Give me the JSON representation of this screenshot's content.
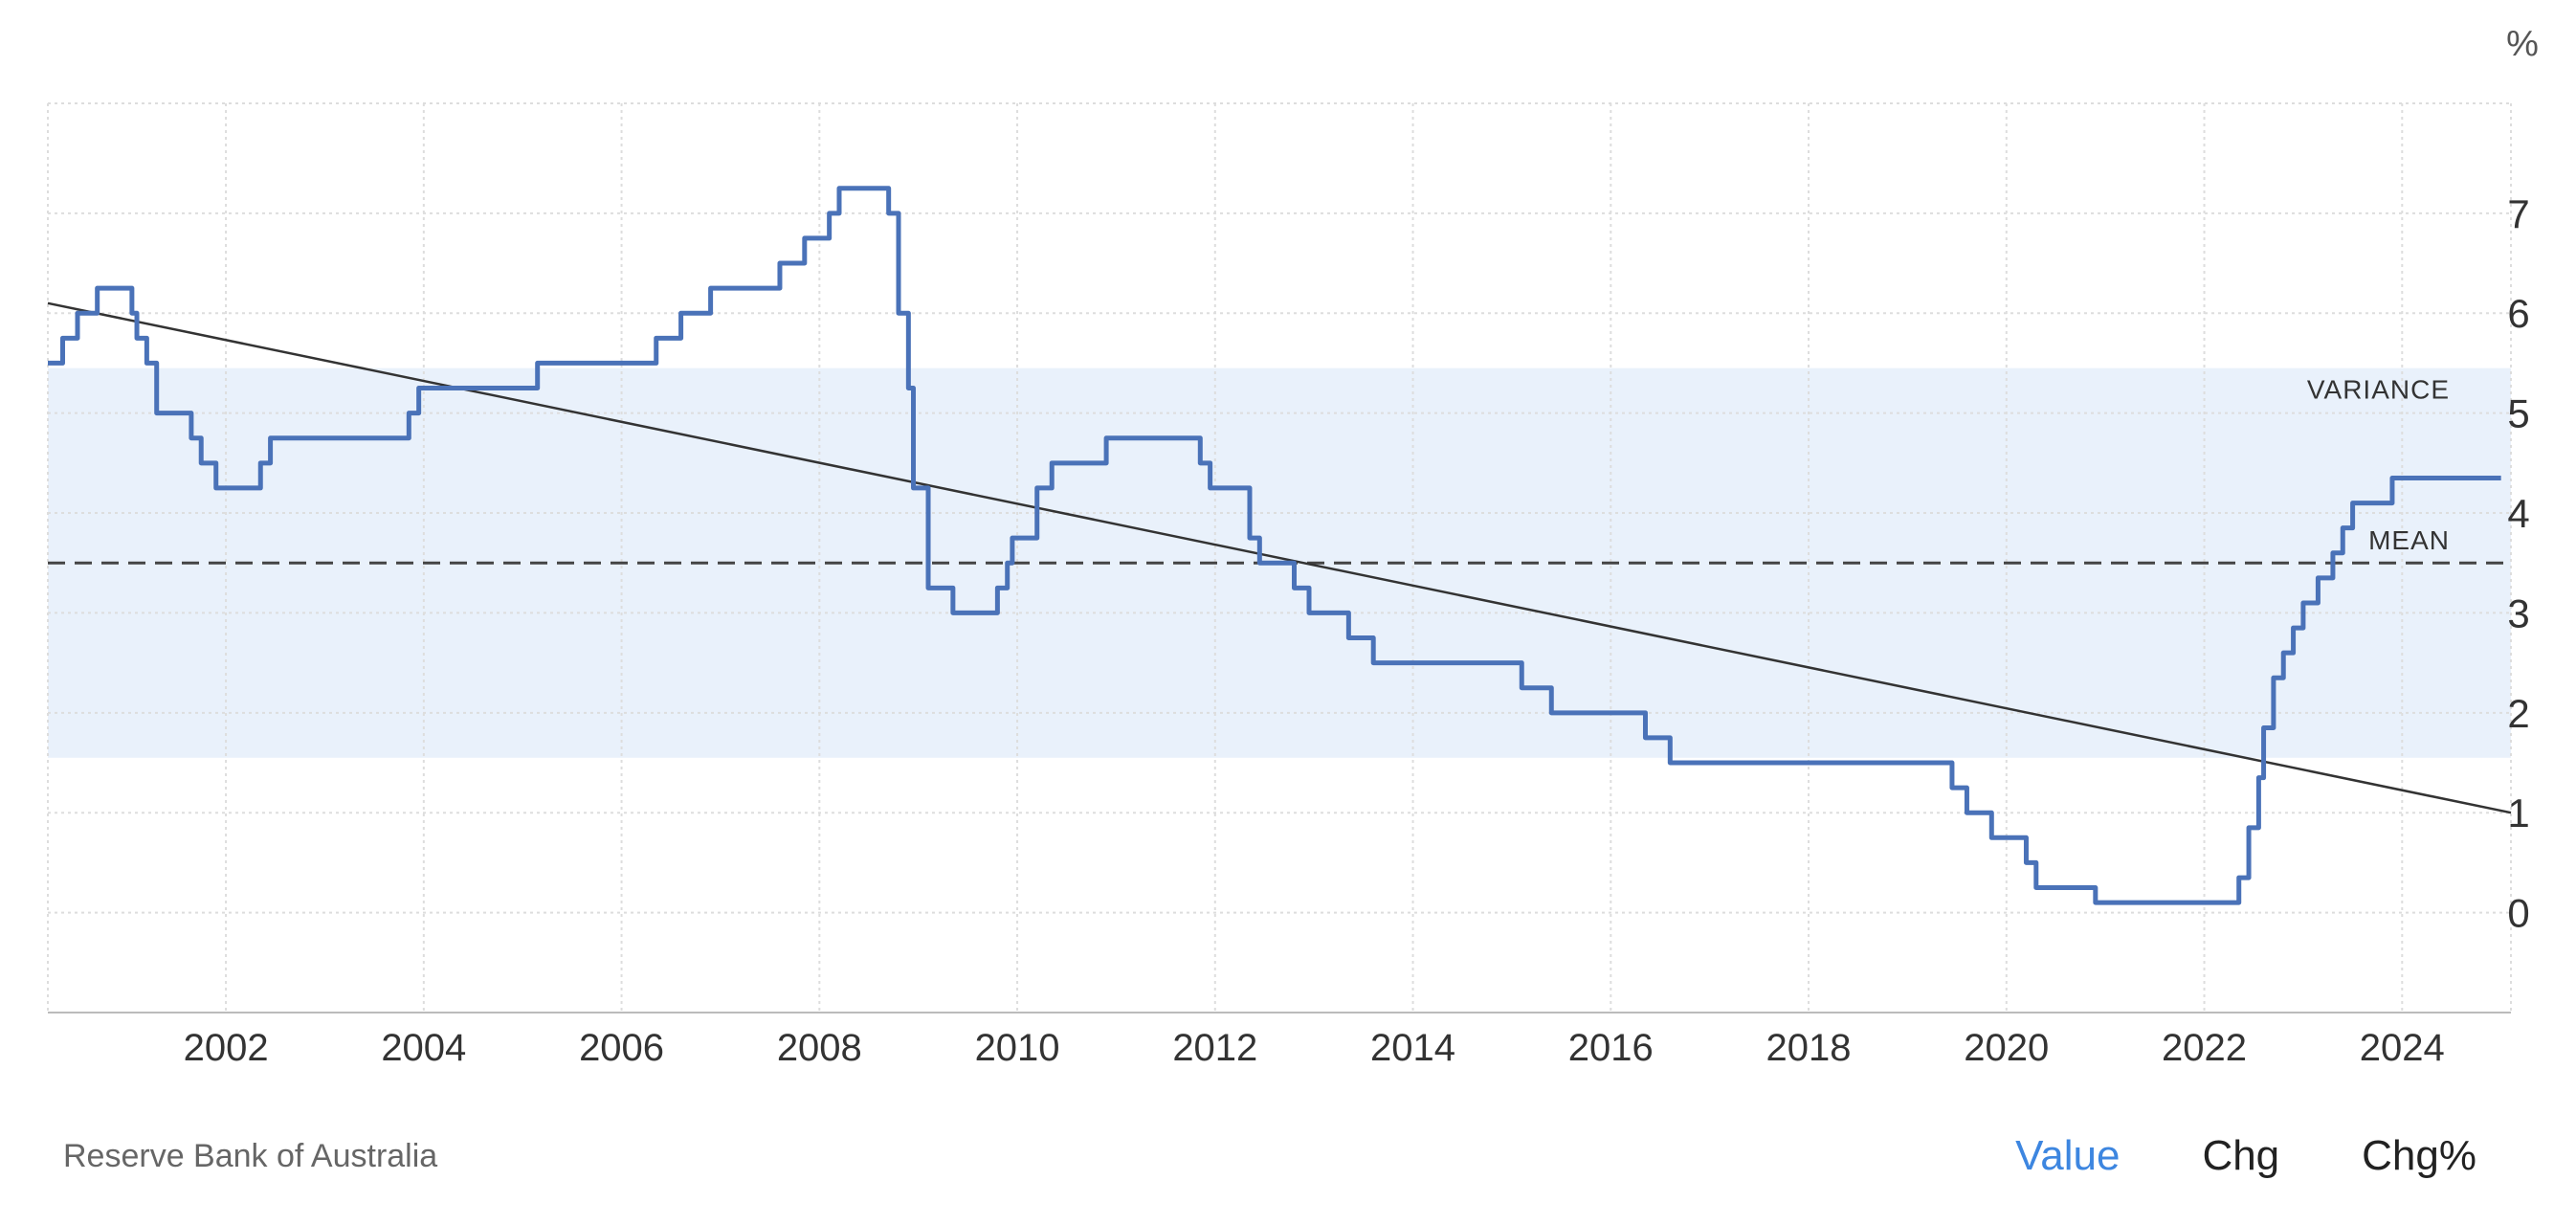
{
  "chart_data": {
    "type": "line",
    "unit_label": "%",
    "x_ticks": [
      "2002",
      "2004",
      "2006",
      "2008",
      "2010",
      "2012",
      "2014",
      "2016",
      "2018",
      "2020",
      "2022",
      "2024"
    ],
    "y_ticks": [
      "0",
      "1",
      "2",
      "3",
      "4",
      "5",
      "6",
      "7"
    ],
    "xlim": [
      2000.2,
      2025.1
    ],
    "ylim": [
      -1,
      8.1
    ],
    "grid": true,
    "annotations": {
      "variance_label": "VARIANCE",
      "mean_label": "MEAN"
    },
    "mean": 3.5,
    "variance_band": [
      1.55,
      5.45
    ],
    "trend": {
      "start": [
        2000.2,
        6.1
      ],
      "end": [
        2025.1,
        1.0
      ]
    },
    "series": [
      {
        "color": "#4a72b8",
        "step": true,
        "points": [
          [
            2000.2,
            5.5
          ],
          [
            2000.35,
            5.75
          ],
          [
            2000.5,
            6.0
          ],
          [
            2000.7,
            6.25
          ],
          [
            2001.05,
            6.0
          ],
          [
            2001.1,
            5.75
          ],
          [
            2001.2,
            5.5
          ],
          [
            2001.3,
            5.0
          ],
          [
            2001.65,
            4.75
          ],
          [
            2001.75,
            4.5
          ],
          [
            2001.9,
            4.25
          ],
          [
            2002.35,
            4.5
          ],
          [
            2002.45,
            4.75
          ],
          [
            2003.85,
            5.0
          ],
          [
            2003.95,
            5.25
          ],
          [
            2005.15,
            5.5
          ],
          [
            2006.35,
            5.75
          ],
          [
            2006.6,
            6.0
          ],
          [
            2006.9,
            6.25
          ],
          [
            2007.6,
            6.5
          ],
          [
            2007.85,
            6.75
          ],
          [
            2008.1,
            7.0
          ],
          [
            2008.2,
            7.25
          ],
          [
            2008.7,
            7.0
          ],
          [
            2008.8,
            6.0
          ],
          [
            2008.9,
            5.25
          ],
          [
            2008.95,
            4.25
          ],
          [
            2009.1,
            3.25
          ],
          [
            2009.35,
            3.0
          ],
          [
            2009.8,
            3.25
          ],
          [
            2009.9,
            3.5
          ],
          [
            2009.95,
            3.75
          ],
          [
            2010.2,
            4.25
          ],
          [
            2010.35,
            4.5
          ],
          [
            2010.9,
            4.75
          ],
          [
            2011.85,
            4.5
          ],
          [
            2011.95,
            4.25
          ],
          [
            2012.35,
            3.75
          ],
          [
            2012.45,
            3.5
          ],
          [
            2012.8,
            3.25
          ],
          [
            2012.95,
            3.0
          ],
          [
            2013.35,
            2.75
          ],
          [
            2013.6,
            2.5
          ],
          [
            2015.1,
            2.25
          ],
          [
            2015.4,
            2.0
          ],
          [
            2016.35,
            1.75
          ],
          [
            2016.6,
            1.5
          ],
          [
            2019.45,
            1.25
          ],
          [
            2019.6,
            1.0
          ],
          [
            2019.85,
            0.75
          ],
          [
            2020.2,
            0.5
          ],
          [
            2020.3,
            0.25
          ],
          [
            2020.9,
            0.1
          ],
          [
            2022.35,
            0.35
          ],
          [
            2022.45,
            0.85
          ],
          [
            2022.55,
            1.35
          ],
          [
            2022.6,
            1.85
          ],
          [
            2022.7,
            2.35
          ],
          [
            2022.8,
            2.6
          ],
          [
            2022.9,
            2.85
          ],
          [
            2023.0,
            3.1
          ],
          [
            2023.15,
            3.35
          ],
          [
            2023.3,
            3.6
          ],
          [
            2023.4,
            3.85
          ],
          [
            2023.5,
            4.1
          ],
          [
            2023.9,
            4.35
          ],
          [
            2025.0,
            4.35
          ]
        ]
      }
    ]
  },
  "footer": {
    "source": "Reserve Bank of Australia",
    "tabs": [
      "Value",
      "Chg",
      "Chg%"
    ],
    "active_tab": "Value"
  },
  "colors": {
    "series": "#4a72b8",
    "variance_band": "#e9f1fb",
    "active_tab": "#3d86e0",
    "grid": "#dddddd"
  }
}
